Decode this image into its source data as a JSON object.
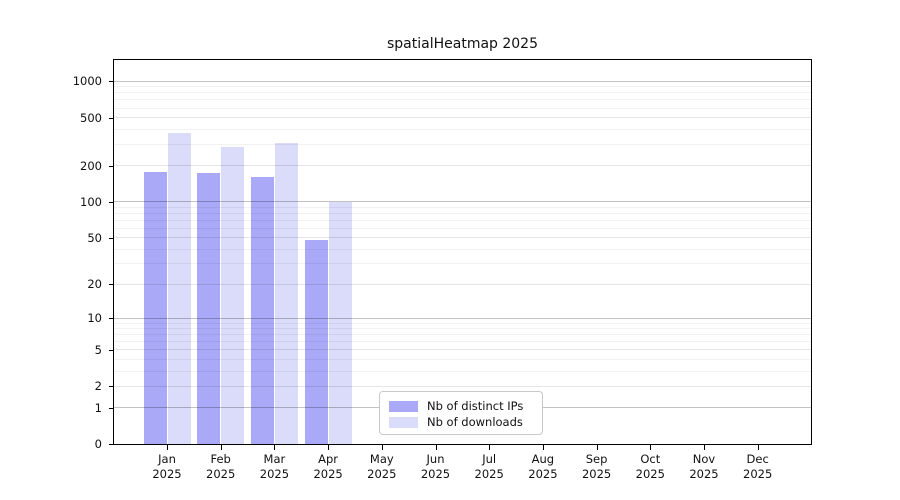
{
  "title": "spatialHeatmap 2025",
  "chart_data": {
    "type": "bar",
    "title": "spatialHeatmap 2025",
    "categories": [
      "Jan",
      "Feb",
      "Mar",
      "Apr",
      "May",
      "Jun",
      "Jul",
      "Aug",
      "Sep",
      "Oct",
      "Nov",
      "Dec"
    ],
    "category_year_label": "2025",
    "series": [
      {
        "name": "Nb of distinct IPs",
        "color": "#a9a9f7",
        "values": [
          176,
          173,
          161,
          48,
          0,
          0,
          0,
          0,
          0,
          0,
          0,
          0
        ]
      },
      {
        "name": "Nb of downloads",
        "color": "#dbdbfa",
        "values": [
          370,
          285,
          305,
          100,
          0,
          0,
          0,
          0,
          0,
          0,
          0,
          0
        ]
      }
    ],
    "xlabel": "",
    "ylabel": "",
    "y_scale": "log1p",
    "y_ticks": [
      0,
      1,
      2,
      5,
      10,
      20,
      50,
      100,
      200,
      500,
      1000
    ],
    "y_minor_ticks": [
      3,
      4,
      6,
      7,
      8,
      9,
      30,
      40,
      60,
      70,
      80,
      90,
      300,
      400,
      600,
      700,
      800,
      900
    ],
    "y_decade_ticks": [
      1,
      10,
      100,
      1000
    ],
    "ylim": [
      0,
      1500
    ],
    "grid": true,
    "gridlines_over_bars": true,
    "legend_position": "lower center",
    "colors": {
      "spine": "#000000",
      "decade_gridline": "#c2c2c2",
      "major_gridline": "#e6e6e6",
      "minor_gridline": "#f2f2f2",
      "text": "#111111",
      "background": "#ffffff"
    }
  }
}
